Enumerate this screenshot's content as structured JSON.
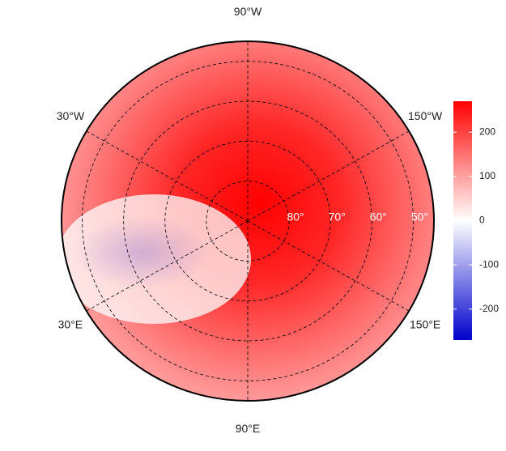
{
  "chart_data": {
    "type": "polar-map",
    "lonticks": [
      {
        "value": -90,
        "label": "90°W"
      },
      {
        "value": -30,
        "label": "30°W"
      },
      {
        "value": -150,
        "label": "150°W"
      },
      {
        "value": 30,
        "label": "30°E"
      },
      {
        "value": 150,
        "label": "150°E"
      },
      {
        "value": 90,
        "label": "90°E"
      }
    ],
    "latticks": [
      {
        "value": 80,
        "label": "80°"
      },
      {
        "value": 70,
        "label": "70°"
      },
      {
        "value": 60,
        "label": "60°"
      },
      {
        "value": 50,
        "label": "50°"
      }
    ],
    "latlim": [
      45,
      90
    ],
    "colorbar": {
      "lim": [
        -270,
        270
      ],
      "ticks": [
        -200,
        -100,
        0,
        100,
        200
      ],
      "colors": [
        "#0000cc",
        "#ffffff",
        "#ff0000"
      ]
    }
  }
}
